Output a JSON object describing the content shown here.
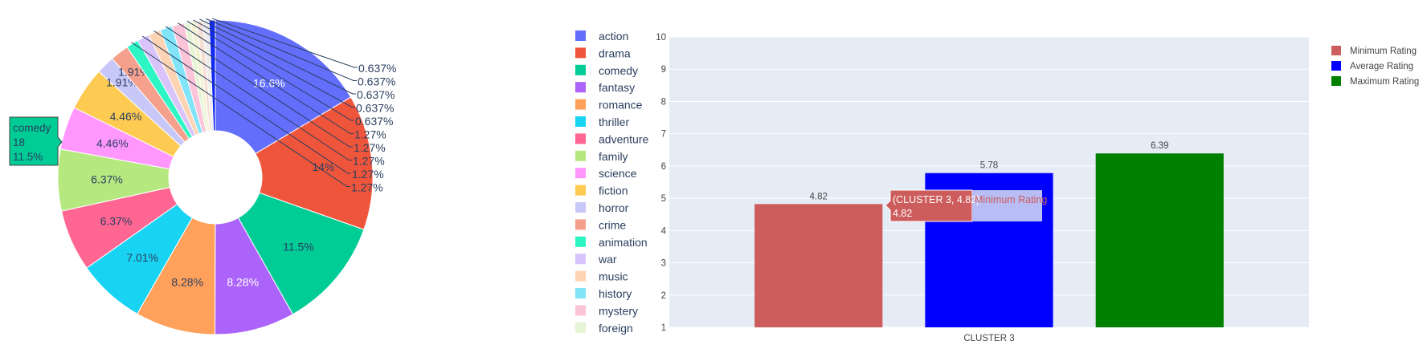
{
  "chart_data": [
    {
      "type": "pie",
      "hole": true,
      "labels": [
        "action",
        "drama",
        "comedy",
        "fantasy",
        "romance",
        "thriller",
        "adventure",
        "family",
        "science",
        "fiction",
        "horror",
        "crime",
        "animation",
        "war",
        "music",
        "history",
        "mystery",
        "foreign",
        "",
        "",
        "",
        ""
      ],
      "values": [
        16.6,
        14,
        11.5,
        8.28,
        8.28,
        7.01,
        6.37,
        6.37,
        4.46,
        4.46,
        1.91,
        1.91,
        1.27,
        1.27,
        1.27,
        1.27,
        1.27,
        0.637,
        0.637,
        0.637,
        0.637,
        0.637
      ],
      "text_labels": [
        "16.6%",
        "14%",
        "11.5%",
        "8.28%",
        "8.28%",
        "7.01%",
        "6.37%",
        "6.37%",
        "4.46%",
        "4.46%",
        "1.91%",
        "1.91%",
        "1.27%",
        "1.27%",
        "1.27%",
        "1.27%",
        "1.27%",
        "0.637%",
        "0.637%",
        "0.637%",
        "0.637%",
        "0.637%"
      ],
      "colors": [
        "#636efa",
        "#EF553B",
        "#00cc96",
        "#ab63fa",
        "#FFA15A",
        "#19d3f3",
        "#FF6692",
        "#B6E880",
        "#FF97FF",
        "#FECB52",
        "#c8c8f8",
        "#f4a08c",
        "#2df5c4",
        "#d8c4fa",
        "#fcd4b4",
        "#82e4f8",
        "#fcc4d8",
        "#e4f4d4",
        "#f2f2d2",
        "#f5dfd4",
        "#ececec",
        "#0f28f2"
      ],
      "legend": {
        "position": "right",
        "items": [
          {
            "label": "action",
            "color": "#636efa"
          },
          {
            "label": "drama",
            "color": "#EF553B"
          },
          {
            "label": "comedy",
            "color": "#00cc96"
          },
          {
            "label": "fantasy",
            "color": "#ab63fa"
          },
          {
            "label": "romance",
            "color": "#FFA15A"
          },
          {
            "label": "thriller",
            "color": "#19d3f3"
          },
          {
            "label": "adventure",
            "color": "#FF6692"
          },
          {
            "label": "family",
            "color": "#B6E880"
          },
          {
            "label": "science",
            "color": "#FF97FF"
          },
          {
            "label": "fiction",
            "color": "#FECB52"
          },
          {
            "label": "horror",
            "color": "#c8c8f8"
          },
          {
            "label": "crime",
            "color": "#f4a08c"
          },
          {
            "label": "animation",
            "color": "#2df5c4"
          },
          {
            "label": "war",
            "color": "#d8c4fa"
          },
          {
            "label": "music",
            "color": "#fcd4b4"
          },
          {
            "label": "history",
            "color": "#82e4f8"
          },
          {
            "label": "mystery",
            "color": "#fcc4d8"
          },
          {
            "label": "foreign",
            "color": "#e4f4d4"
          }
        ]
      },
      "hover_tooltip": {
        "label": "comedy",
        "count": "18",
        "percent": "11.5%",
        "color": "#00cc96"
      }
    },
    {
      "type": "bar",
      "categories": [
        "CLUSTER 3"
      ],
      "series": [
        {
          "name": "Minimum Rating",
          "values": [
            4.82
          ],
          "color": "#cd5c5c",
          "label": "4.82"
        },
        {
          "name": "Average Rating",
          "values": [
            5.78
          ],
          "color": "#0000ff",
          "label": "5.78"
        },
        {
          "name": "Maximum Rating",
          "values": [
            6.39
          ],
          "color": "#008000",
          "label": "6.39"
        }
      ],
      "ylim": [
        1,
        10
      ],
      "yticks": [
        "1",
        "2",
        "3",
        "4",
        "5",
        "6",
        "7",
        "8",
        "9",
        "10"
      ],
      "grid": true,
      "background": "#e5ecf6",
      "legend": {
        "position": "top-right"
      },
      "hover_tooltip": {
        "title": "(CLUSTER 3, 4.82)",
        "value": "4.82",
        "name": "Minimum Rating"
      }
    }
  ]
}
